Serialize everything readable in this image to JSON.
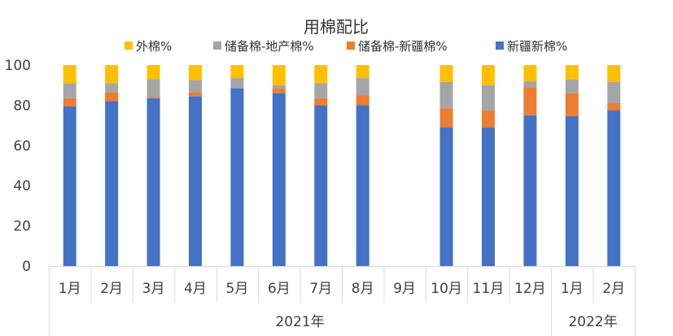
{
  "chart_data": {
    "type": "bar",
    "stacked": true,
    "title": "用棉配比",
    "ylim": [
      0,
      100
    ],
    "yticks": [
      "0",
      "20",
      "40",
      "60",
      "80",
      "100"
    ],
    "categories": [
      "1月",
      "2月",
      "3月",
      "4月",
      "5月",
      "6月",
      "7月",
      "8月",
      "9月",
      "10月",
      "11月",
      "12月",
      "1月",
      "2月"
    ],
    "year_groups": [
      {
        "label": "2021年",
        "span": 12
      },
      {
        "label": "2022年",
        "span": 2
      }
    ],
    "legend_position": "top",
    "grid": false,
    "series": [
      {
        "name": "新疆新棉",
        "color": "#4472C4",
        "values": [
          79.5,
          82,
          83.5,
          84.5,
          88.5,
          86,
          80,
          80,
          0,
          69,
          69,
          75,
          74.5,
          77.5
        ]
      },
      {
        "name": "储备棉-新疆棉",
        "color": "#ED7D31",
        "values": [
          4,
          4.5,
          0.5,
          2,
          0,
          2.5,
          3.5,
          5,
          0,
          9.5,
          8.5,
          14,
          11.5,
          3.5
        ]
      },
      {
        "name": "储备棉-地产棉",
        "color": "#A5A5A5",
        "values": [
          7.5,
          4.5,
          9,
          6,
          5,
          1.5,
          7.5,
          8.5,
          0,
          13,
          12.5,
          3,
          7,
          10.5
        ]
      },
      {
        "name": "外棉%",
        "color": "#FFC000",
        "values": [
          9,
          9,
          7,
          7.5,
          6.5,
          10,
          9,
          6.5,
          0,
          8.5,
          10,
          8,
          7,
          8.5
        ]
      }
    ],
    "legend_order": [
      "外棉%",
      "储备棉-地产棉%",
      "储备棉-新疆棉%",
      "新疆新棉%"
    ]
  }
}
